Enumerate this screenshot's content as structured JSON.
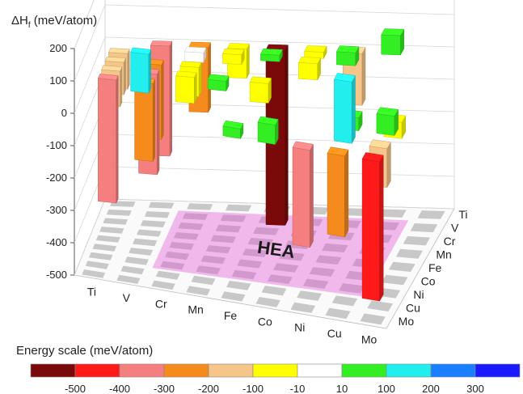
{
  "chart_data": {
    "type": "bar3d",
    "ylabel_main": "ΔH",
    "ylabel_sub": "f",
    "ylabel_unit": " (meV/atom)",
    "yticks": [
      200,
      100,
      0,
      -100,
      -200,
      -300,
      -400,
      -500
    ],
    "ylim": [
      -500,
      200
    ],
    "x_elements": [
      "Ti",
      "V",
      "Cr",
      "Mn",
      "Fe",
      "Co",
      "Ni",
      "Cu",
      "Mo"
    ],
    "z_elements": [
      "Ti",
      "V",
      "Cr",
      "Mn",
      "Fe",
      "Co",
      "Ni",
      "Cu",
      "Mo"
    ],
    "floor_label": "HEA",
    "hea_region": {
      "x_from": "Cr",
      "x_to": "Cu",
      "z_from": "Cr",
      "z_to": "Cu"
    },
    "grid": true,
    "bars": [
      {
        "x": "Ti",
        "z": "Fe",
        "value": -380
      },
      {
        "x": "Ti",
        "z": "Ni",
        "value": -100
      },
      {
        "x": "Ti",
        "z": "Cu",
        "value": -110
      },
      {
        "x": "Ti",
        "z": "Co",
        "value": -110
      },
      {
        "x": "V",
        "z": "Mo",
        "value": -340
      },
      {
        "x": "V",
        "z": "Co",
        "value": -310
      },
      {
        "x": "V",
        "z": "Ni",
        "value": -230
      },
      {
        "x": "V",
        "z": "Fe",
        "value": -240
      },
      {
        "x": "V",
        "z": "Mn",
        "value": 120
      },
      {
        "x": "Cr",
        "z": "Ni",
        "value": -90
      },
      {
        "x": "Cr",
        "z": "Cu",
        "value": 10
      },
      {
        "x": "Cr",
        "z": "Mo",
        "value": -200
      },
      {
        "x": "Cr",
        "z": "Co",
        "value": -80
      },
      {
        "x": "Mn",
        "z": "Fe",
        "value": 30
      },
      {
        "x": "Mn",
        "z": "Cu",
        "value": -10
      },
      {
        "x": "Mn",
        "z": "Mo",
        "value": -90
      },
      {
        "x": "Fe",
        "z": "Mo",
        "value": -540
      },
      {
        "x": "Fe",
        "z": "Ti",
        "value": 30
      },
      {
        "x": "Fe",
        "z": "Co",
        "value": -60
      },
      {
        "x": "Fe",
        "z": "Cu",
        "value": 20
      },
      {
        "x": "Co",
        "z": "Mo",
        "value": -20
      },
      {
        "x": "Co",
        "z": "Ti",
        "value": 60
      },
      {
        "x": "Co",
        "z": "Cu",
        "value": -50
      },
      {
        "x": "Ni",
        "z": "Mo",
        "value": -160
      },
      {
        "x": "Ni",
        "z": "Ti",
        "value": -300
      },
      {
        "x": "Ni",
        "z": "Cu",
        "value": 40
      },
      {
        "x": "Cu",
        "z": "Mo",
        "value": 60
      },
      {
        "x": "Cu",
        "z": "Ti",
        "value": -250
      },
      {
        "x": "Cu",
        "z": "V",
        "value": 190
      },
      {
        "x": "Cu",
        "z": "Cr",
        "value": 40
      },
      {
        "x": "Mo",
        "z": "Ti",
        "value": -430
      },
      {
        "x": "Mo",
        "z": "V",
        "value": -120
      },
      {
        "x": "Mo",
        "z": "Cr",
        "value": 60
      },
      {
        "x": "Mo",
        "z": "Mn",
        "value": -50
      }
    ]
  },
  "energy_scale": {
    "title": "Energy scale (meV/atom)",
    "labels": [
      "-500",
      "-400",
      "-300",
      "-200",
      "-100",
      "-10",
      "10",
      "100",
      "200",
      "300"
    ],
    "bins": [
      {
        "max": -500,
        "color": "#7a0a0a"
      },
      {
        "max": -400,
        "color": "#ff1a1a"
      },
      {
        "max": -300,
        "color": "#f57f7f"
      },
      {
        "max": -200,
        "color": "#f58b1c"
      },
      {
        "max": -100,
        "color": "#f5c58a"
      },
      {
        "max": -10,
        "color": "#ffff00"
      },
      {
        "max": 10,
        "color": "#ffffff"
      },
      {
        "max": 100,
        "color": "#33ee22"
      },
      {
        "max": 200,
        "color": "#22eeee"
      },
      {
        "max": 300,
        "color": "#1a7fff"
      },
      {
        "max": 1000,
        "color": "#1a1aff"
      }
    ]
  }
}
